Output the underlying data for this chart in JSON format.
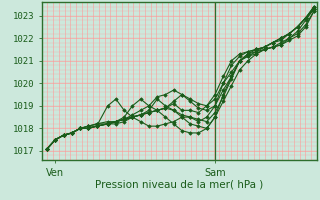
{
  "bg_color": "#cce8dc",
  "grid_color": "#ff9999",
  "line_color": "#1a5c1a",
  "marker_color": "#1a5c1a",
  "axis_label_color": "#1a5c1a",
  "tick_label_color": "#1a5c1a",
  "border_color": "#2d6e2d",
  "xlabel": "Pression niveau de la mer( hPa )",
  "yticks": [
    1017,
    1018,
    1019,
    1020,
    1021,
    1022,
    1023
  ],
  "ylim": [
    1016.6,
    1023.6
  ],
  "xtick_labels": [
    "Ven",
    "Sam"
  ],
  "xtick_positions": [
    0.05,
    0.63
  ],
  "xlim": [
    0.0,
    1.0
  ],
  "vline_x": 0.63,
  "series": [
    {
      "x": [
        0.02,
        0.05,
        0.08,
        0.11,
        0.14,
        0.17,
        0.2,
        0.24,
        0.27,
        0.3,
        0.33,
        0.36,
        0.39,
        0.42,
        0.45,
        0.48,
        0.51,
        0.54,
        0.57,
        0.6,
        0.63,
        0.66,
        0.69,
        0.72,
        0.75,
        0.78,
        0.81,
        0.84,
        0.87,
        0.9,
        0.93,
        0.96,
        0.99
      ],
      "y": [
        1017.1,
        1017.5,
        1017.7,
        1017.8,
        1018.0,
        1018.1,
        1018.2,
        1018.3,
        1018.3,
        1018.4,
        1018.6,
        1018.8,
        1019.0,
        1019.4,
        1019.5,
        1019.7,
        1019.5,
        1019.3,
        1019.1,
        1019.0,
        1019.3,
        1020.0,
        1020.5,
        1021.0,
        1021.2,
        1021.3,
        1021.5,
        1021.6,
        1021.7,
        1021.9,
        1022.1,
        1022.5,
        1023.2
      ]
    },
    {
      "x": [
        0.02,
        0.05,
        0.08,
        0.11,
        0.14,
        0.17,
        0.2,
        0.24,
        0.27,
        0.3,
        0.33,
        0.36,
        0.39,
        0.42,
        0.45,
        0.48,
        0.51,
        0.54,
        0.57,
        0.6,
        0.63,
        0.66,
        0.69,
        0.72,
        0.75,
        0.78,
        0.81,
        0.84,
        0.87,
        0.9,
        0.93,
        0.96,
        0.99
      ],
      "y": [
        1017.1,
        1017.5,
        1017.7,
        1017.8,
        1018.0,
        1018.1,
        1018.2,
        1018.2,
        1018.3,
        1018.4,
        1018.5,
        1018.6,
        1018.7,
        1018.8,
        1018.9,
        1019.2,
        1019.5,
        1019.2,
        1018.9,
        1018.8,
        1019.0,
        1019.7,
        1020.3,
        1021.0,
        1021.2,
        1021.4,
        1021.5,
        1021.6,
        1021.7,
        1022.0,
        1022.2,
        1022.6,
        1023.2
      ]
    },
    {
      "x": [
        0.02,
        0.05,
        0.08,
        0.11,
        0.14,
        0.17,
        0.2,
        0.24,
        0.27,
        0.3,
        0.33,
        0.36,
        0.39,
        0.42,
        0.45,
        0.48,
        0.51,
        0.54,
        0.57,
        0.6,
        0.63,
        0.66,
        0.69,
        0.72,
        0.75,
        0.78,
        0.81,
        0.84,
        0.87,
        0.9,
        0.93,
        0.96,
        0.99
      ],
      "y": [
        1017.1,
        1017.5,
        1017.7,
        1017.8,
        1018.0,
        1018.0,
        1018.1,
        1018.2,
        1018.3,
        1018.4,
        1018.5,
        1018.6,
        1018.7,
        1018.8,
        1018.9,
        1018.8,
        1018.5,
        1018.2,
        1018.1,
        1018.0,
        1018.5,
        1019.2,
        1019.9,
        1020.6,
        1021.0,
        1021.3,
        1021.5,
        1021.6,
        1021.8,
        1022.0,
        1022.3,
        1022.8,
        1023.3
      ]
    },
    {
      "x": [
        0.02,
        0.05,
        0.08,
        0.11,
        0.14,
        0.17,
        0.2,
        0.24,
        0.27,
        0.3,
        0.33,
        0.36,
        0.39,
        0.42,
        0.45,
        0.48,
        0.51,
        0.54,
        0.57,
        0.6,
        0.63,
        0.66,
        0.69,
        0.72,
        0.75,
        0.78,
        0.81,
        0.84,
        0.87,
        0.9,
        0.93,
        0.96,
        0.99
      ],
      "y": [
        1017.1,
        1017.5,
        1017.7,
        1017.8,
        1018.0,
        1018.0,
        1018.1,
        1019.0,
        1019.3,
        1018.8,
        1018.5,
        1018.3,
        1018.1,
        1018.1,
        1018.2,
        1018.3,
        1018.5,
        1018.5,
        1018.4,
        1018.3,
        1018.7,
        1019.4,
        1020.2,
        1021.0,
        1021.3,
        1021.5,
        1021.6,
        1021.8,
        1022.0,
        1022.2,
        1022.5,
        1022.9,
        1023.4
      ]
    },
    {
      "x": [
        0.02,
        0.05,
        0.08,
        0.11,
        0.14,
        0.17,
        0.2,
        0.24,
        0.27,
        0.3,
        0.33,
        0.36,
        0.39,
        0.42,
        0.45,
        0.48,
        0.51,
        0.54,
        0.57,
        0.6,
        0.63,
        0.66,
        0.69,
        0.72,
        0.75,
        0.78,
        0.81,
        0.84,
        0.87,
        0.9,
        0.93,
        0.96,
        0.99
      ],
      "y": [
        1017.1,
        1017.5,
        1017.7,
        1017.8,
        1018.0,
        1018.0,
        1018.1,
        1018.2,
        1018.3,
        1018.5,
        1019.0,
        1019.3,
        1019.0,
        1018.8,
        1018.5,
        1018.2,
        1017.9,
        1017.8,
        1017.8,
        1018.0,
        1018.5,
        1019.5,
        1020.3,
        1021.0,
        1021.3,
        1021.4,
        1021.6,
        1021.8,
        1022.0,
        1022.2,
        1022.5,
        1022.9,
        1023.3
      ]
    },
    {
      "x": [
        0.02,
        0.05,
        0.08,
        0.11,
        0.14,
        0.17,
        0.2,
        0.24,
        0.27,
        0.3,
        0.33,
        0.36,
        0.39,
        0.42,
        0.45,
        0.48,
        0.51,
        0.54,
        0.57,
        0.6,
        0.63,
        0.66,
        0.69,
        0.72,
        0.75,
        0.78,
        0.81,
        0.84,
        0.87,
        0.9,
        0.93,
        0.96,
        0.99
      ],
      "y": [
        1017.1,
        1017.5,
        1017.7,
        1017.8,
        1018.0,
        1018.0,
        1018.1,
        1018.2,
        1018.3,
        1018.4,
        1018.5,
        1018.6,
        1018.8,
        1019.3,
        1019.0,
        1018.8,
        1018.6,
        1018.5,
        1018.3,
        1018.5,
        1019.0,
        1020.0,
        1020.8,
        1021.2,
        1021.4,
        1021.5,
        1021.6,
        1021.8,
        1022.0,
        1022.2,
        1022.5,
        1022.9,
        1023.4
      ]
    },
    {
      "x": [
        0.02,
        0.05,
        0.08,
        0.11,
        0.14,
        0.17,
        0.2,
        0.24,
        0.27,
        0.3,
        0.33,
        0.36,
        0.39,
        0.42,
        0.45,
        0.48,
        0.51,
        0.54,
        0.57,
        0.6,
        0.63,
        0.66,
        0.69,
        0.72,
        0.75,
        0.78,
        0.81,
        0.84,
        0.87,
        0.9,
        0.93,
        0.96,
        0.99
      ],
      "y": [
        1017.1,
        1017.5,
        1017.7,
        1017.8,
        1018.0,
        1018.1,
        1018.1,
        1018.2,
        1018.2,
        1018.3,
        1018.5,
        1018.6,
        1018.7,
        1018.8,
        1018.9,
        1019.1,
        1018.8,
        1018.8,
        1018.7,
        1019.0,
        1019.5,
        1020.3,
        1021.0,
        1021.3,
        1021.4,
        1021.5,
        1021.6,
        1021.8,
        1021.9,
        1022.2,
        1022.5,
        1022.9,
        1023.3
      ]
    }
  ]
}
